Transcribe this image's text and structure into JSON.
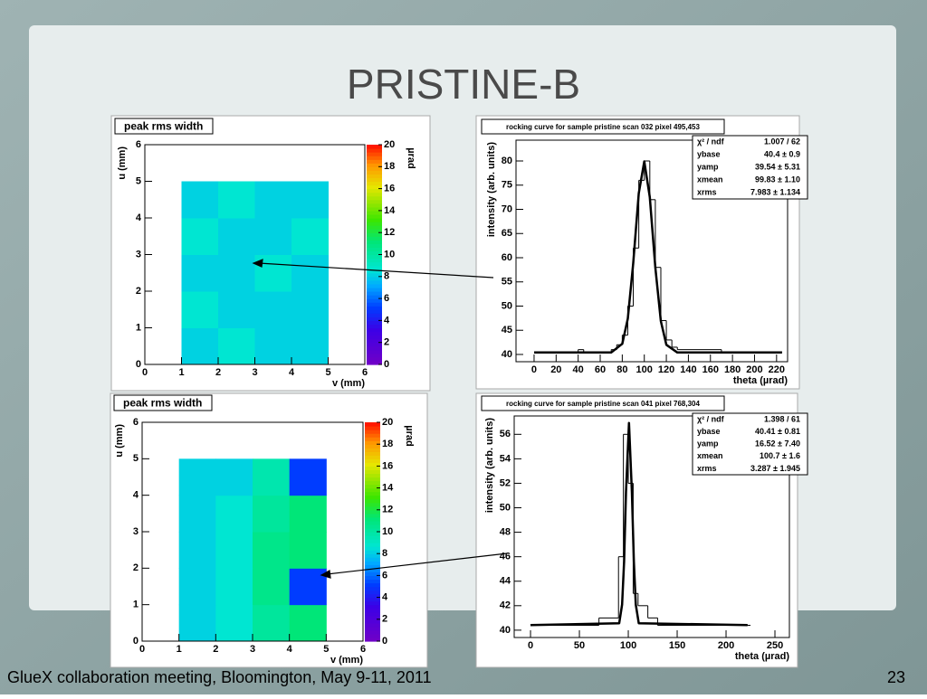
{
  "slide": {
    "title": "PRISTINE-B",
    "footer": "GlueX collaboration meeting, Bloomington, May 9-11, 2011",
    "page": "23"
  },
  "chart_data": [
    {
      "type": "heatmap",
      "title": "peak rms width",
      "xlabel": "v (mm)",
      "ylabel": "u (mm)",
      "zlabel": "µrad",
      "xlim": [
        0,
        6
      ],
      "ylim": [
        0,
        6
      ],
      "xticks": [
        0,
        1,
        2,
        3,
        4,
        5,
        6
      ],
      "yticks": [
        0,
        1,
        2,
        3,
        4,
        5,
        6
      ],
      "zlim": [
        0,
        20
      ],
      "zticks": [
        0,
        2,
        4,
        6,
        8,
        10,
        12,
        14,
        16,
        18,
        20
      ],
      "z": [
        [
          null,
          8,
          8.5,
          8,
          8,
          null
        ],
        [
          null,
          8.5,
          8,
          8,
          8,
          null
        ],
        [
          null,
          8,
          8,
          8.5,
          8,
          null
        ],
        [
          null,
          8.5,
          8,
          8,
          8.5,
          null
        ],
        [
          null,
          8,
          8.5,
          8,
          8,
          null
        ],
        [
          null,
          null,
          null,
          null,
          null,
          null
        ]
      ]
    },
    {
      "type": "line",
      "title": "rocking curve for sample pristine scan 032 pixel 495,453",
      "xlabel": "theta (µrad)",
      "ylabel": "intensity (arb. units)",
      "xlim": [
        -16.4,
        230
      ],
      "ylim": [
        38.5,
        84.3
      ],
      "xticks": [
        0,
        20,
        40,
        60,
        80,
        100,
        120,
        140,
        160,
        180,
        200,
        220
      ],
      "yticks": [
        40,
        45,
        50,
        55,
        60,
        65,
        70,
        75,
        80
      ],
      "stats": [
        {
          "name": "χ² / ndf",
          "value": "1.007 / 62"
        },
        {
          "name": "ybase",
          "value": "40.4 ± 0.9"
        },
        {
          "name": "yamp",
          "value": "39.54 ± 5.31"
        },
        {
          "name": "xmean",
          "value": "99.83 ± 1.10"
        },
        {
          "name": "xrms",
          "value": "7.983 ± 1.134"
        }
      ],
      "series": [
        {
          "color": "#000000",
          "bins": [
            0,
            40,
            45,
            70,
            75,
            80,
            85,
            90,
            95,
            100,
            105,
            110,
            115,
            120,
            125,
            130,
            170,
            225
          ],
          "values": [
            40.5,
            41,
            40.5,
            41,
            42,
            44,
            50,
            62,
            76,
            80,
            72,
            58,
            47,
            43,
            41.5,
            41,
            40.5
          ]
        },
        {
          "color": "#000000",
          "x": [
            0,
            70,
            80,
            85,
            90,
            95,
            100,
            105,
            110,
            115,
            120,
            130,
            225
          ],
          "values": [
            40.4,
            40.4,
            42.2,
            47.4,
            58.9,
            73.3,
            79.9,
            72.5,
            58.0,
            46.9,
            42.0,
            40.4,
            40.4
          ]
        }
      ]
    },
    {
      "type": "heatmap",
      "title": "peak rms width",
      "xlabel": "v (mm)",
      "ylabel": "u (mm)",
      "zlabel": "µrad",
      "xlim": [
        0,
        6
      ],
      "ylim": [
        0,
        6
      ],
      "xticks": [
        0,
        1,
        2,
        3,
        4,
        5,
        6
      ],
      "yticks": [
        0,
        1,
        2,
        3,
        4,
        5,
        6
      ],
      "zlim": [
        0,
        20
      ],
      "zticks": [
        0,
        2,
        4,
        6,
        8,
        10,
        12,
        14,
        16,
        18,
        20
      ],
      "z": [
        [
          null,
          8,
          8.5,
          10,
          11,
          null
        ],
        [
          null,
          8,
          8.5,
          10.5,
          5,
          null
        ],
        [
          null,
          8,
          8.5,
          10.5,
          11,
          null
        ],
        [
          null,
          8,
          8.5,
          10,
          11,
          null
        ],
        [
          null,
          8,
          8,
          9.5,
          5,
          null
        ],
        [
          null,
          null,
          null,
          null,
          null,
          null
        ]
      ]
    },
    {
      "type": "line",
      "title": "rocking curve for sample pristine scan 041 pixel 768,304",
      "xlabel": "theta (µrad)",
      "ylabel": "intensity (arb. units)",
      "xlim": [
        -16.7,
        264.8
      ],
      "ylim": [
        39.4,
        57.5
      ],
      "xticks": [
        0,
        50,
        100,
        150,
        200,
        250
      ],
      "yticks": [
        40,
        42,
        44,
        46,
        48,
        50,
        52,
        54,
        56
      ],
      "stats": [
        {
          "name": "χ² / ndf",
          "value": "1.398 / 61"
        },
        {
          "name": "ybase",
          "value": "40.41 ± 0.81"
        },
        {
          "name": "yamp",
          "value": "16.52 ± 7.40"
        },
        {
          "name": "xmean",
          "value": "100.7 ± 1.6"
        },
        {
          "name": "xrms",
          "value": "3.287 ± 1.945"
        }
      ],
      "series": [
        {
          "color": "#000000",
          "bins": [
            0,
            70,
            90,
            95,
            100,
            105,
            110,
            120,
            130,
            225
          ],
          "values": [
            40.4,
            41,
            46,
            56,
            52,
            43,
            42,
            41,
            40.4
          ]
        },
        {
          "color": "#000000",
          "x": [
            0,
            90.7,
            93.7,
            95.7,
            97.7,
            100.7,
            103.7,
            105.7,
            107.7,
            110.7,
            222
          ],
          "values": [
            40.41,
            40.57,
            42.1,
            45.6,
            51.3,
            56.93,
            51.3,
            45.6,
            42.1,
            40.57,
            40.41
          ]
        }
      ]
    }
  ]
}
